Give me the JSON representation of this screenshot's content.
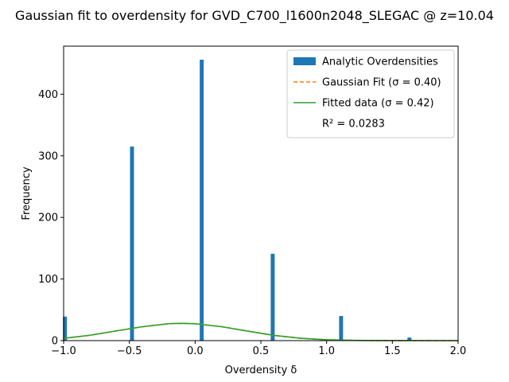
{
  "chart_data": {
    "type": "bar",
    "title": "Gaussian fit to overdensity for GVD_C700_l1600n2048_SLEGAC @ z=10.04",
    "xlabel": "Overdensity δ",
    "ylabel": "Frequency",
    "xlim": [
      -1.0,
      2.0
    ],
    "ylim": [
      0,
      478
    ],
    "xticks": [
      "−1.0",
      "−0.5",
      "0.0",
      "0.5",
      "1.0",
      "1.5",
      "2.0"
    ],
    "xtick_values": [
      -1.0,
      -0.5,
      0.0,
      0.5,
      1.0,
      1.5,
      2.0
    ],
    "yticks": [
      "0",
      "100",
      "200",
      "300",
      "400"
    ],
    "ytick_values": [
      0,
      100,
      200,
      300,
      400
    ],
    "grid": false,
    "legend_position": "top-right",
    "histogram": {
      "name": "Analytic Overdensities",
      "color": "#1f77b4",
      "bin_width": 0.03,
      "bars": [
        {
          "x": -0.99,
          "value": 39
        },
        {
          "x": -0.48,
          "value": 315
        },
        {
          "x": 0.05,
          "value": 456
        },
        {
          "x": 0.59,
          "value": 141
        },
        {
          "x": 1.11,
          "value": 40
        },
        {
          "x": 1.63,
          "value": 5
        }
      ]
    },
    "series": [
      {
        "name": "Gaussian Fit (σ = 0.40)",
        "color": "#ff7f0e",
        "style": "dashed",
        "x": [
          -1.0,
          -0.8,
          -0.6,
          -0.4,
          -0.2,
          -0.1,
          0.0,
          0.2,
          0.4,
          0.6,
          0.8,
          1.0,
          1.2,
          1.4,
          1.6,
          1.8,
          2.0
        ],
        "values": [
          3.6,
          8.5,
          15.6,
          22.5,
          27.4,
          28.0,
          27.5,
          22.8,
          15.5,
          8.4,
          3.7,
          1.3,
          0.35,
          0.07,
          0.01,
          0.0,
          0.0
        ]
      },
      {
        "name": "Fitted data (σ = 0.42)",
        "color": "#2ca02c",
        "style": "solid",
        "x": [
          -1.0,
          -0.8,
          -0.6,
          -0.4,
          -0.2,
          -0.1,
          0.0,
          0.2,
          0.4,
          0.6,
          0.8,
          1.0,
          1.2,
          1.4,
          1.6,
          1.8,
          2.0
        ],
        "values": [
          3.8,
          8.7,
          15.8,
          22.6,
          27.5,
          28.0,
          27.4,
          22.6,
          15.4,
          8.5,
          3.9,
          1.4,
          0.4,
          0.09,
          0.02,
          0.0,
          0.0
        ]
      }
    ],
    "annotation": "R² = 0.0283"
  },
  "legend": {
    "items": [
      {
        "label": "Analytic Overdensities",
        "kind": "patch",
        "color": "#1f77b4"
      },
      {
        "label": "Gaussian Fit (σ = 0.40)",
        "kind": "dashed",
        "color": "#ff7f0e"
      },
      {
        "label": "Fitted data (σ = 0.42)",
        "kind": "solid",
        "color": "#2ca02c"
      },
      {
        "label": "R² = 0.0283",
        "kind": "none",
        "color": ""
      }
    ]
  }
}
